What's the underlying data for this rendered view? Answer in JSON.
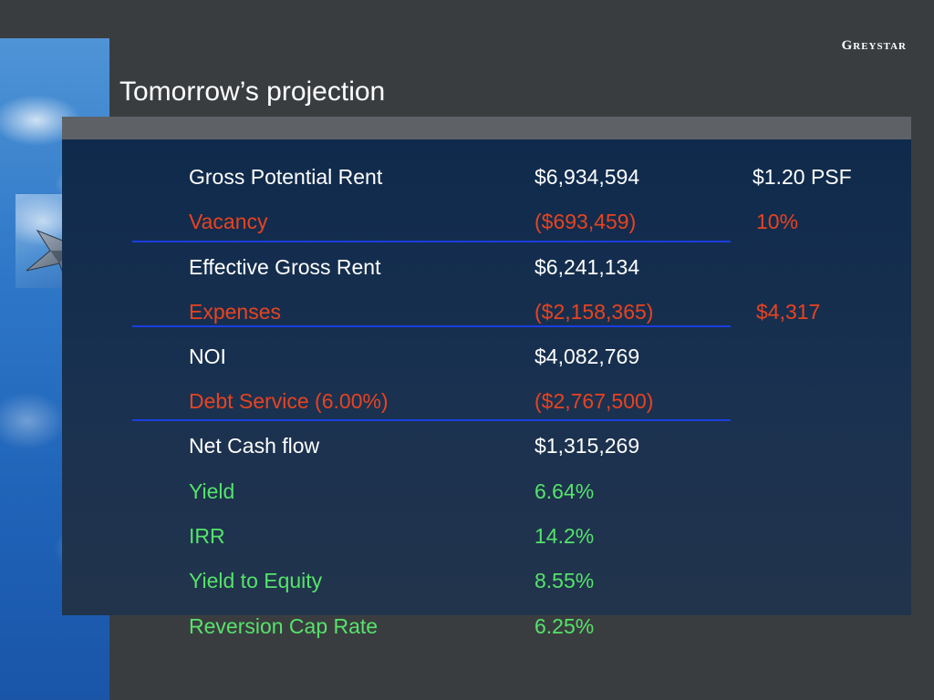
{
  "header": {
    "logo": "Greystar",
    "title": "Tomorrow’s projection"
  },
  "rows": [
    {
      "label": "Gross Potential Rent",
      "value": "$6,934,594",
      "extra": "$1.20 PSF",
      "color": "#ffffff"
    },
    {
      "label": "Vacancy",
      "value": "($693,459)",
      "extra": "10%",
      "color": "#e8431f"
    },
    {
      "label": "Effective Gross Rent",
      "value": "$6,241,134",
      "extra": "",
      "color": "#ffffff"
    },
    {
      "label": "Expenses",
      "value": "($2,158,365)",
      "extra": "$4,317",
      "color": "#e8431f"
    },
    {
      "label": "NOI",
      "value": "$4,082,769",
      "extra": "",
      "color": "#ffffff"
    },
    {
      "label": "Debt Service (6.00%)",
      "value": "($2,767,500)",
      "extra": "",
      "color": "#e8431f"
    },
    {
      "label": "Net Cash flow",
      "value": "$1,315,269",
      "extra": "",
      "color": "#ffffff"
    },
    {
      "label": "Yield",
      "value": "6.64%",
      "extra": "",
      "color": "#55e36a"
    },
    {
      "label": "IRR",
      "value": "14.2%",
      "extra": "",
      "color": "#55e36a"
    },
    {
      "label": "Yield to Equity",
      "value": "8.55%",
      "extra": "",
      "color": "#55e36a"
    },
    {
      "label": "Reversion Cap Rate",
      "value": "6.25%",
      "extra": "",
      "color": "#55e36a"
    }
  ],
  "theme": {
    "background": "#3a3d40",
    "panel": "#1a3150",
    "separator": "#1a3fe0"
  }
}
